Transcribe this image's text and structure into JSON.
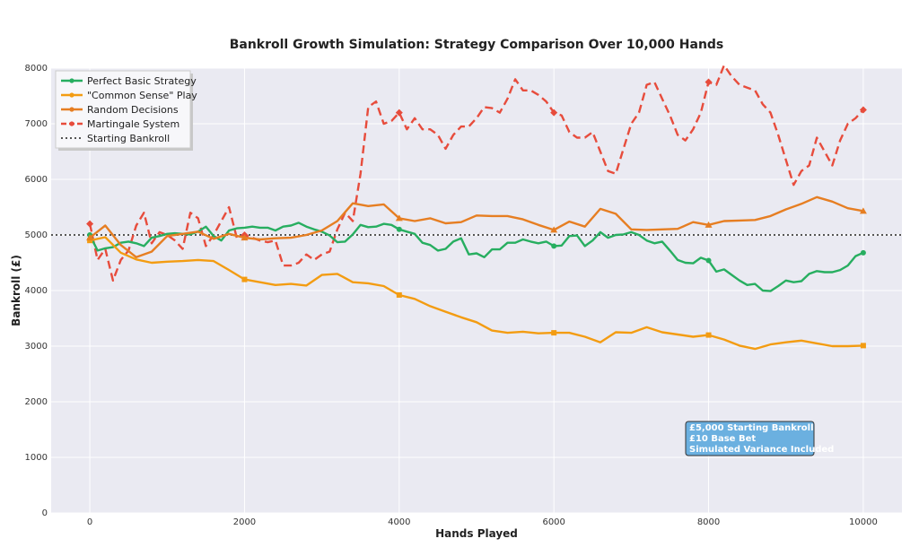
{
  "chart_data": {
    "type": "line",
    "title": "Bankroll Growth Simulation: Strategy Comparison Over 10,000 Hands",
    "xlabel": "Hands Played",
    "ylabel": "Bankroll (£)",
    "xlim": [
      -500,
      10500
    ],
    "ylim": [
      0,
      8000
    ],
    "xticks": [
      0,
      2000,
      4000,
      6000,
      8000,
      10000
    ],
    "yticks": [
      0,
      1000,
      2000,
      3000,
      4000,
      5000,
      6000,
      7000,
      8000
    ],
    "grid": true,
    "legend_position": "top-left",
    "reference_line": {
      "name": "Starting Bankroll",
      "value": 5000,
      "color": "#555555"
    },
    "annotation": {
      "lines": [
        "£5,000 Starting Bankroll",
        "£10 Base Bet",
        "Simulated Variance Included"
      ],
      "x": 7800,
      "y": 1500
    },
    "series": [
      {
        "name": "Perfect Basic Strategy",
        "color": "#27ae60",
        "style": "solid",
        "x": [
          0,
          100,
          200,
          300,
          400,
          500,
          600,
          700,
          800,
          900,
          1000,
          1100,
          1200,
          1300,
          1400,
          1500,
          1600,
          1700,
          1800,
          1900,
          2000,
          2100,
          2200,
          2300,
          2400,
          2500,
          2600,
          2700,
          2800,
          2900,
          3000,
          3100,
          3200,
          3300,
          3400,
          3500,
          3600,
          3700,
          3800,
          3900,
          4000,
          4100,
          4200,
          4300,
          4400,
          4500,
          4600,
          4700,
          4800,
          4900,
          5000,
          5100,
          5200,
          5300,
          5400,
          5500,
          5600,
          5700,
          5800,
          5900,
          6000,
          6100,
          6200,
          6300,
          6400,
          6500,
          6600,
          6700,
          6800,
          6900,
          7000,
          7100,
          7200,
          7300,
          7400,
          7500,
          7600,
          7700,
          7800,
          7900,
          8000,
          8100,
          8200,
          8300,
          8400,
          8500,
          8600,
          8700,
          8800,
          8900,
          9000,
          9100,
          9200,
          9300,
          9400,
          9500,
          9600,
          9700,
          9800,
          9900,
          10000
        ],
        "values": [
          5000,
          4720,
          4760,
          4780,
          4860,
          4880,
          4850,
          4800,
          4950,
          4980,
          5020,
          5030,
          5020,
          5010,
          5060,
          5150,
          4980,
          4900,
          5080,
          5120,
          5130,
          5150,
          5130,
          5130,
          5080,
          5150,
          5170,
          5220,
          5150,
          5100,
          5060,
          4990,
          4870,
          4880,
          5010,
          5180,
          5140,
          5150,
          5200,
          5180,
          5100,
          5060,
          5020,
          4860,
          4820,
          4720,
          4750,
          4880,
          4940,
          4650,
          4670,
          4600,
          4740,
          4740,
          4860,
          4860,
          4920,
          4880,
          4850,
          4880,
          4800,
          4810,
          4980,
          4990,
          4800,
          4900,
          5050,
          4950,
          5000,
          5010,
          5050,
          5000,
          4900,
          4850,
          4880,
          4720,
          4550,
          4500,
          4490,
          4590,
          4540,
          4340,
          4380,
          4280,
          4180,
          4100,
          4120,
          4000,
          3990,
          4080,
          4180,
          4150,
          4170,
          4300,
          4350,
          4330,
          4330,
          4370,
          4450,
          4620,
          4680
        ],
        "markers": [
          0,
          4000,
          6000,
          8000,
          10000
        ]
      },
      {
        "name": "\"Common Sense\" Play",
        "color": "#f39c12",
        "style": "solid",
        "x": [
          0,
          200,
          400,
          600,
          800,
          1000,
          1200,
          1400,
          1600,
          1800,
          2000,
          2200,
          2400,
          2600,
          2800,
          3000,
          3200,
          3400,
          3600,
          3800,
          4000,
          4200,
          4400,
          4600,
          4800,
          5000,
          5200,
          5400,
          5600,
          5800,
          6000,
          6200,
          6400,
          6600,
          6800,
          7000,
          7200,
          7400,
          7600,
          7800,
          8000,
          8200,
          8400,
          8600,
          8800,
          9000,
          9200,
          9400,
          9600,
          9800,
          10000
        ],
        "values": [
          4900,
          4960,
          4680,
          4560,
          4500,
          4520,
          4530,
          4550,
          4530,
          4370,
          4200,
          4150,
          4100,
          4120,
          4090,
          4280,
          4300,
          4150,
          4130,
          4080,
          3920,
          3850,
          3720,
          3620,
          3520,
          3430,
          3280,
          3240,
          3260,
          3230,
          3240,
          3240,
          3170,
          3070,
          3250,
          3240,
          3340,
          3250,
          3210,
          3170,
          3200,
          3120,
          3010,
          2950,
          3030,
          3070,
          3100,
          3050,
          3000,
          3000,
          3010
        ],
        "markers": [
          0,
          2000,
          4000,
          6000,
          8000,
          10000
        ]
      },
      {
        "name": "Random Decisions",
        "color": "#e67e22",
        "style": "solid",
        "x": [
          0,
          200,
          400,
          600,
          800,
          1000,
          1200,
          1400,
          1600,
          1800,
          2000,
          2200,
          2400,
          2600,
          2800,
          3000,
          3200,
          3400,
          3600,
          3800,
          4000,
          4200,
          4400,
          4600,
          4800,
          5000,
          5200,
          5400,
          5600,
          5800,
          6000,
          6200,
          6400,
          6600,
          6800,
          7000,
          7200,
          7400,
          7600,
          7800,
          8000,
          8200,
          8400,
          8600,
          8800,
          9000,
          9200,
          9400,
          9600,
          9800,
          10000
        ],
        "values": [
          4950,
          5170,
          4820,
          4600,
          4700,
          4980,
          5020,
          5060,
          4930,
          5020,
          4950,
          4920,
          4940,
          4950,
          5000,
          5080,
          5250,
          5570,
          5520,
          5550,
          5300,
          5250,
          5300,
          5210,
          5230,
          5350,
          5340,
          5340,
          5280,
          5180,
          5090,
          5240,
          5150,
          5470,
          5380,
          5100,
          5090,
          5100,
          5110,
          5230,
          5180,
          5250,
          5260,
          5270,
          5340,
          5460,
          5560,
          5680,
          5600,
          5480,
          5430
        ],
        "markers": [
          0,
          2000,
          4000,
          6000,
          8000,
          10000
        ]
      },
      {
        "name": "Martingale System",
        "color": "#e74c3c",
        "style": "dashed",
        "x": [
          0,
          100,
          200,
          300,
          400,
          500,
          600,
          700,
          800,
          900,
          1000,
          1100,
          1200,
          1300,
          1400,
          1500,
          1600,
          1700,
          1800,
          1900,
          2000,
          2100,
          2200,
          2300,
          2400,
          2500,
          2600,
          2700,
          2800,
          2900,
          3000,
          3100,
          3200,
          3300,
          3400,
          3500,
          3600,
          3700,
          3800,
          3900,
          4000,
          4100,
          4200,
          4300,
          4400,
          4500,
          4600,
          4700,
          4800,
          4900,
          5000,
          5100,
          5200,
          5300,
          5400,
          5500,
          5600,
          5700,
          5800,
          5900,
          6000,
          6100,
          6200,
          6300,
          6400,
          6500,
          6600,
          6700,
          6800,
          6900,
          7000,
          7100,
          7200,
          7300,
          7400,
          7500,
          7600,
          7700,
          7800,
          7900,
          8000,
          8100,
          8200,
          8300,
          8400,
          8500,
          8600,
          8700,
          8800,
          8900,
          9000,
          9100,
          9200,
          9300,
          9400,
          9500,
          9600,
          9700,
          9800,
          9900,
          10000
        ],
        "values": [
          5200,
          4550,
          4750,
          4180,
          4550,
          4720,
          5170,
          5400,
          4850,
          5050,
          5000,
          4900,
          4750,
          5400,
          5300,
          4800,
          5000,
          5250,
          5500,
          4950,
          5000,
          4950,
          4900,
          4870,
          4900,
          4450,
          4450,
          4500,
          4650,
          4550,
          4650,
          4700,
          5100,
          5400,
          5250,
          6100,
          7300,
          7400,
          7000,
          7050,
          7200,
          6900,
          7100,
          6900,
          6900,
          6800,
          6550,
          6800,
          6950,
          6950,
          7100,
          7300,
          7280,
          7200,
          7450,
          7800,
          7600,
          7600,
          7520,
          7400,
          7200,
          7150,
          6850,
          6750,
          6750,
          6850,
          6500,
          6150,
          6100,
          6550,
          7000,
          7200,
          7700,
          7750,
          7450,
          7150,
          6800,
          6700,
          6900,
          7200,
          7750,
          7700,
          8050,
          7850,
          7700,
          7650,
          7600,
          7350,
          7200,
          6800,
          6350,
          5900,
          6150,
          6250,
          6750,
          6500,
          6250,
          6700,
          7000,
          7100,
          7250
        ],
        "markers": [
          0,
          2000,
          4000,
          6000,
          8000,
          10000
        ]
      }
    ]
  }
}
